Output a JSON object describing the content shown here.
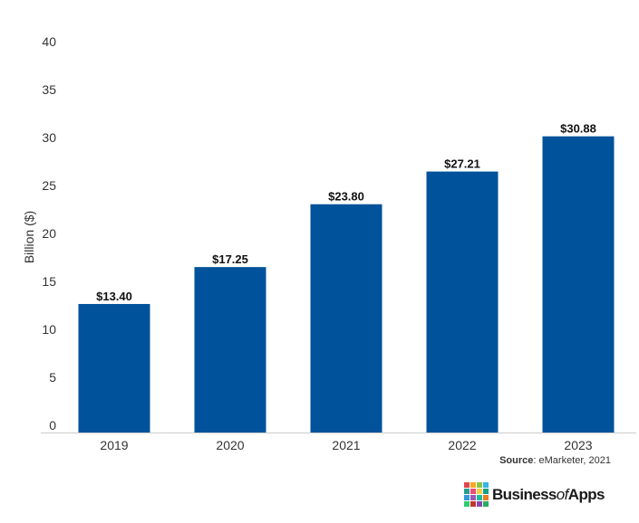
{
  "chart_data": {
    "type": "bar",
    "categories": [
      "2019",
      "2020",
      "2021",
      "2022",
      "2023"
    ],
    "values": [
      13.4,
      17.25,
      23.8,
      27.21,
      30.88
    ],
    "data_labels": [
      "$13.40",
      "$17.25",
      "$23.80",
      "$27.21",
      "$30.88"
    ],
    "ylabel": "Billion ($)",
    "ylim": [
      0,
      40
    ],
    "yticks": [
      0,
      5,
      10,
      15,
      20,
      25,
      30,
      35,
      40
    ],
    "grid": false,
    "bar_color": "#00529b"
  },
  "source": {
    "label": "Source",
    "text": ": eMarketer, 2021"
  },
  "logo": {
    "part1": "Business",
    "part2": "of",
    "part3": "Apps",
    "colors": [
      "#e0474c",
      "#f7a823",
      "#8cc63f",
      "#35b6e7",
      "#2a9d8f",
      "#e94e77",
      "#f4d03f",
      "#16a085",
      "#3498db",
      "#9b59b6",
      "#1abc9c",
      "#e67e22",
      "#2ecc71",
      "#c0392b",
      "#8e44ad",
      "#27ae60"
    ]
  }
}
